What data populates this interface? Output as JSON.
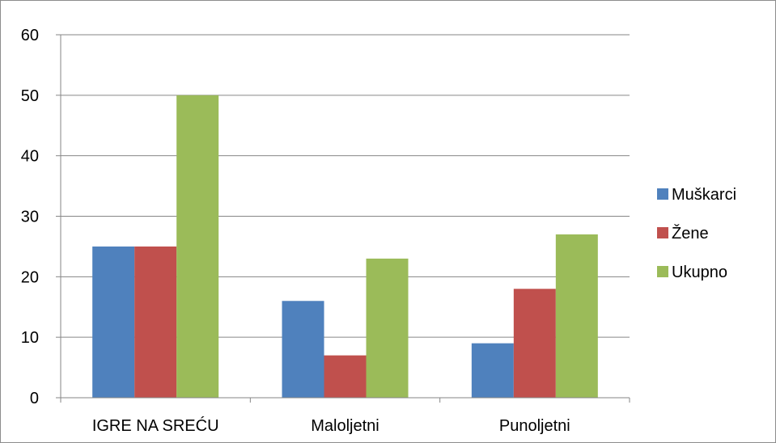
{
  "chart_data": {
    "type": "bar",
    "title": "",
    "xlabel": "",
    "ylabel": "",
    "categories": [
      "IGRE NA SREĆU",
      "Maloljetni",
      "Punoljetni"
    ],
    "series": [
      {
        "name": "Muškarci",
        "values": [
          25,
          16,
          9
        ],
        "color": "#4f81bd"
      },
      {
        "name": "Žene",
        "values": [
          25,
          7,
          18
        ],
        "color": "#c0504d"
      },
      {
        "name": "Ukupno",
        "values": [
          50,
          23,
          27
        ],
        "color": "#9bbb59"
      }
    ],
    "ylim": [
      0,
      60
    ],
    "yticks": [
      "0",
      "10",
      "20",
      "30",
      "40",
      "50",
      "60"
    ],
    "grid": true,
    "legend_position": "right"
  }
}
